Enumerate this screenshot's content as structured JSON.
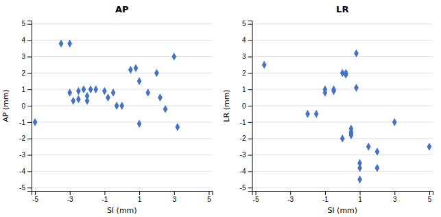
{
  "chart_data": [
    {
      "type": "scatter",
      "title": "AP",
      "xlabel": "SI (mm)",
      "ylabel": "AP (mm)",
      "x": [
        -5,
        -3.5,
        -3,
        -3,
        -2.8,
        -2.5,
        -2.5,
        -2.2,
        -2,
        -2,
        -1.8,
        -1.5,
        -1,
        -0.8,
        -0.5,
        -0.3,
        0,
        0.5,
        0.8,
        1,
        1,
        1.5,
        2,
        2.2,
        2.5,
        3,
        3.2
      ],
      "values": [
        -1,
        3.8,
        3.8,
        0.8,
        0.3,
        0.9,
        0.4,
        1,
        0.6,
        0.3,
        1.0,
        1.0,
        0.9,
        0.5,
        0.8,
        0.0,
        0.0,
        2.2,
        2.3,
        1.5,
        -1.1,
        0.8,
        2.0,
        0.5,
        -0.2,
        3.0,
        -1.3
      ],
      "color": "#4472C4",
      "marker": "diamond",
      "xlim": [
        -5.2,
        5.2
      ],
      "ylim": [
        -5.2,
        5.2
      ],
      "xticks": [
        -5,
        -3,
        -1,
        1,
        3,
        5
      ],
      "yticks": [
        -5,
        -4,
        -3,
        -2,
        -1,
        0,
        1,
        2,
        3,
        4,
        5
      ],
      "grid": "y"
    },
    {
      "type": "scatter",
      "title": "LR",
      "xlabel": "SI (mm)",
      "ylabel": "LR (mm)",
      "x": [
        -4.5,
        -2,
        -1.5,
        -1,
        -1,
        -0.5,
        -0.5,
        0,
        0,
        0.2,
        0.2,
        0.5,
        0.5,
        0.5,
        0.5,
        0.8,
        0.8,
        1.0,
        1.0,
        1.0,
        1.5,
        2.0,
        2.0,
        3.0,
        5.0
      ],
      "values": [
        2.5,
        -0.5,
        -0.5,
        0.8,
        1.0,
        0.9,
        1.0,
        2.0,
        -2.0,
        1.9,
        2.0,
        -1.4,
        -1.6,
        -1.7,
        -1.8,
        3.2,
        1.1,
        -3.5,
        -3.8,
        -4.5,
        -2.5,
        -2.8,
        -3.8,
        -1.0,
        -2.5
      ],
      "color": "#4472C4",
      "marker": "diamond",
      "xlim": [
        -5.2,
        5.2
      ],
      "ylim": [
        -5.2,
        5.2
      ],
      "xticks": [
        -5,
        -3,
        -1,
        1,
        3,
        5
      ],
      "yticks": [
        -5,
        -4,
        -3,
        -2,
        -1,
        0,
        1,
        2,
        3,
        4,
        5
      ],
      "grid": "y"
    }
  ]
}
